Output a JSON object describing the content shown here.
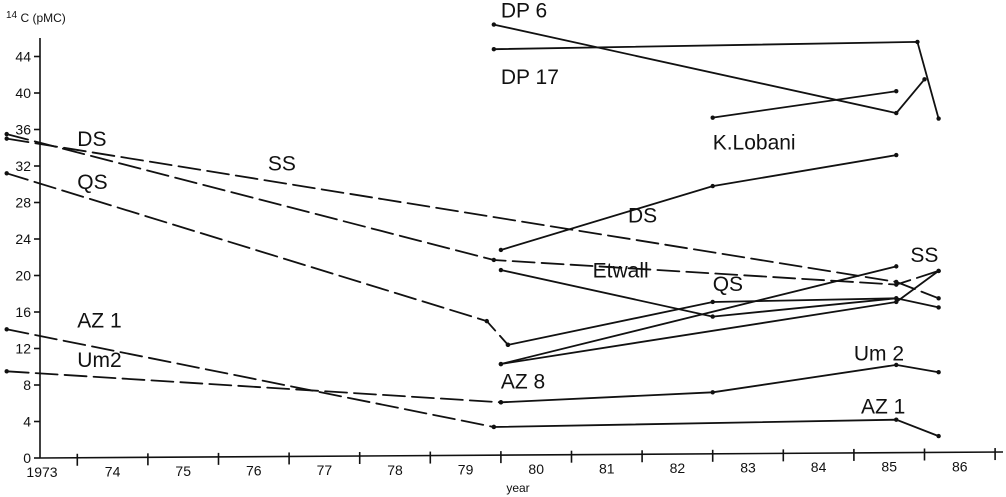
{
  "chart_data": {
    "type": "line",
    "title": "",
    "ylabel_prefix": "14",
    "ylabel": "C (pMC)",
    "xlabel": "year",
    "xlim": [
      1973,
      1986.5
    ],
    "ylim": [
      0,
      48
    ],
    "x_ticks": [
      1973,
      1974,
      1975,
      1976,
      1977,
      1978,
      1979,
      1980,
      1981,
      1982,
      1983,
      1984,
      1985,
      1986
    ],
    "x_tick_labels": [
      "1973",
      "74",
      "75",
      "76",
      "77",
      "78",
      "79",
      "80",
      "81",
      "82",
      "83",
      "84",
      "85",
      "86"
    ],
    "y_ticks": [
      0,
      4,
      8,
      12,
      16,
      20,
      24,
      28,
      32,
      36,
      40,
      44
    ],
    "y_tick_labels": [
      "0",
      "4",
      "8",
      "12",
      "16",
      "20",
      "24",
      "28",
      "32",
      "36",
      "40",
      "44"
    ],
    "grid": false,
    "legend": "none",
    "series": [
      {
        "label": "DP 6",
        "style": "solid",
        "x": [
          1979.9,
          1985.6,
          1986.0
        ],
        "y": [
          47.5,
          37.8,
          41.5
        ],
        "label_at": [
          1980.0,
          48.3
        ]
      },
      {
        "label": "DP 17",
        "style": "solid",
        "x": [
          1979.9,
          1985.9,
          1986.2
        ],
        "y": [
          44.8,
          45.6,
          37.2
        ],
        "label_at": [
          1980.0,
          41.0
        ]
      },
      {
        "label": "K.Lobani",
        "style": "solid",
        "x": [
          1983.0,
          1985.6
        ],
        "y": [
          37.3,
          40.2
        ],
        "label_at": [
          1983.0,
          33.8
        ]
      },
      {
        "label": "DS",
        "style": "dashed",
        "x": [
          1973.0,
          1979.9,
          1985.6,
          1986.2
        ],
        "y": [
          35.5,
          21.7,
          19.0,
          20.5
        ],
        "label_at": [
          1974.0,
          34.2
        ]
      },
      {
        "label": "SS",
        "style": "dashed",
        "x": [
          1973.0,
          1985.6,
          1986.2
        ],
        "y": [
          35.0,
          19.3,
          17.5
        ],
        "label_at": [
          1976.7,
          31.5
        ]
      },
      {
        "label": "QS",
        "style": "dashed",
        "x": [
          1973.0,
          1979.8,
          1980.1
        ],
        "y": [
          31.2,
          15.0,
          12.4
        ],
        "label_at": [
          1974.0,
          29.5
        ]
      },
      {
        "label": "DS",
        "style": "solid",
        "x": [
          1980.0,
          1983.0,
          1985.6
        ],
        "y": [
          22.8,
          29.8,
          33.2
        ],
        "label_at": [
          1981.8,
          25.8
        ]
      },
      {
        "label": "Etwall",
        "style": "solid",
        "x": [
          1980.0,
          1983.0,
          1985.6,
          1986.2
        ],
        "y": [
          20.6,
          15.5,
          17.5,
          16.5
        ],
        "label_at": [
          1981.3,
          19.8
        ]
      },
      {
        "label": "QS",
        "style": "solid",
        "x": [
          1980.1,
          1983.0,
          1985.6
        ],
        "y": [
          12.4,
          17.1,
          17.5
        ],
        "label_at": [
          1983.0,
          18.3
        ]
      },
      {
        "label": "SS",
        "style": "solid",
        "x": [
          1980.0,
          1985.6,
          1986.2
        ],
        "y": [
          10.3,
          17.1,
          20.5
        ],
        "label_at": [
          1985.8,
          21.5
        ]
      },
      {
        "label": "AZ 8",
        "style": "solid",
        "x": [
          1980.0,
          1985.6
        ],
        "y": [
          10.3,
          21.0
        ],
        "label_at": [
          1980.0,
          7.6
        ]
      },
      {
        "label": "AZ 1",
        "style": "dashed",
        "x": [
          1973.0,
          1979.9
        ],
        "y": [
          14.1,
          3.4
        ],
        "label_at": [
          1974.0,
          14.3
        ]
      },
      {
        "label": "AZ 1",
        "style": "solid",
        "x": [
          1979.9,
          1985.6,
          1986.2
        ],
        "y": [
          3.4,
          4.2,
          2.4
        ],
        "label_at": [
          1985.1,
          4.9
        ]
      },
      {
        "label": "Um2",
        "style": "dashed",
        "x": [
          1973.0,
          1980.0
        ],
        "y": [
          9.5,
          6.1
        ],
        "label_at": [
          1974.0,
          10.0
        ]
      },
      {
        "label": "Um 2",
        "style": "solid",
        "x": [
          1980.0,
          1983.0,
          1985.6,
          1986.2
        ],
        "y": [
          6.1,
          7.2,
          10.2,
          9.4
        ],
        "label_at": [
          1985.0,
          10.7
        ]
      }
    ]
  }
}
